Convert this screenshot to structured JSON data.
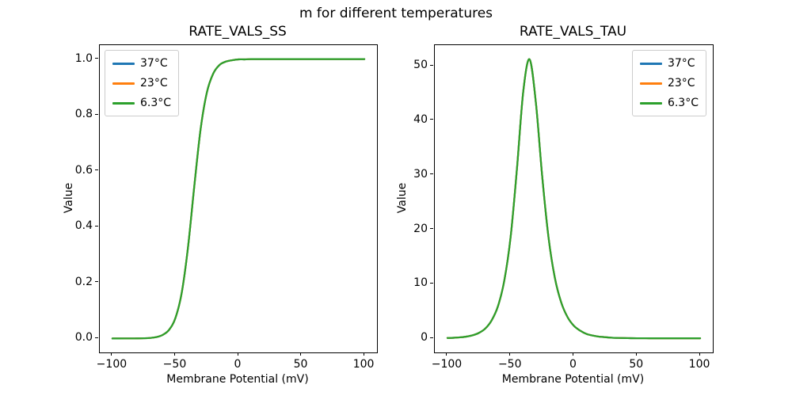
{
  "figure": {
    "title": "m for different temperatures",
    "background": "#ffffff",
    "text_color": "#000000",
    "axes_edge_color": "#000000"
  },
  "legend": {
    "entries": [
      {
        "label": "37°C",
        "color": "#1f77b4"
      },
      {
        "label": "23°C",
        "color": "#ff7f0e"
      },
      {
        "label": "6.3°C",
        "color": "#2ca02c"
      }
    ]
  },
  "chart_data": [
    {
      "type": "line",
      "title": "RATE_VALS_SS",
      "xlabel": "Membrane Potential (mV)",
      "ylabel": "Value",
      "xlim": [
        -110,
        110
      ],
      "ylim": [
        -0.05,
        1.05
      ],
      "xticks": [
        -100,
        -50,
        0,
        50,
        100
      ],
      "xtick_labels": [
        "−100",
        "−50",
        "0",
        "50",
        "100"
      ],
      "yticks": [
        0.0,
        0.2,
        0.4,
        0.6,
        0.8,
        1.0
      ],
      "ytick_labels": [
        "0.0",
        "0.2",
        "0.4",
        "0.6",
        "0.8",
        "1.0"
      ],
      "grid": false,
      "legend_position": "upper-left",
      "note": "all three temperature curves overlap exactly; sigmoid with half-activation near -36 mV",
      "x": [
        -100,
        -95,
        -90,
        -85,
        -80,
        -75,
        -70,
        -65,
        -60,
        -55,
        -50,
        -45,
        -40,
        -35,
        -30,
        -25,
        -20,
        -15,
        -10,
        -5,
        0,
        5,
        10,
        15,
        20,
        25,
        30,
        35,
        40,
        45,
        50,
        55,
        60,
        65,
        70,
        75,
        80,
        85,
        90,
        95,
        100
      ],
      "series": [
        {
          "name": "37°C",
          "color": "#1f77b4",
          "values": [
            0.0,
            0.0,
            0.0001,
            0.0001,
            0.0003,
            0.0008,
            0.002,
            0.005,
            0.013,
            0.031,
            0.073,
            0.163,
            0.326,
            0.545,
            0.749,
            0.881,
            0.948,
            0.979,
            0.991,
            0.996,
            0.999,
            0.999,
            1.0,
            1.0,
            1.0,
            1.0,
            1.0,
            1.0,
            1.0,
            1.0,
            1.0,
            1.0,
            1.0,
            1.0,
            1.0,
            1.0,
            1.0,
            1.0,
            1.0,
            1.0,
            1.0
          ]
        },
        {
          "name": "23°C",
          "color": "#ff7f0e",
          "values": [
            0.0,
            0.0,
            0.0001,
            0.0001,
            0.0003,
            0.0008,
            0.002,
            0.005,
            0.013,
            0.031,
            0.073,
            0.163,
            0.326,
            0.545,
            0.749,
            0.881,
            0.948,
            0.979,
            0.991,
            0.996,
            0.999,
            0.999,
            1.0,
            1.0,
            1.0,
            1.0,
            1.0,
            1.0,
            1.0,
            1.0,
            1.0,
            1.0,
            1.0,
            1.0,
            1.0,
            1.0,
            1.0,
            1.0,
            1.0,
            1.0,
            1.0
          ]
        },
        {
          "name": "6.3°C",
          "color": "#2ca02c",
          "values": [
            0.0,
            0.0,
            0.0001,
            0.0001,
            0.0003,
            0.0008,
            0.002,
            0.005,
            0.013,
            0.031,
            0.073,
            0.163,
            0.326,
            0.545,
            0.749,
            0.881,
            0.948,
            0.979,
            0.991,
            0.996,
            0.999,
            0.999,
            1.0,
            1.0,
            1.0,
            1.0,
            1.0,
            1.0,
            1.0,
            1.0,
            1.0,
            1.0,
            1.0,
            1.0,
            1.0,
            1.0,
            1.0,
            1.0,
            1.0,
            1.0,
            1.0
          ]
        }
      ]
    },
    {
      "type": "line",
      "title": "RATE_VALS_TAU",
      "xlabel": "Membrane Potential (mV)",
      "ylabel": "Value",
      "xlim": [
        -110,
        110
      ],
      "ylim": [
        -2.6,
        53.8
      ],
      "xticks": [
        -100,
        -50,
        0,
        50,
        100
      ],
      "xtick_labels": [
        "−100",
        "−50",
        "0",
        "50",
        "100"
      ],
      "yticks": [
        0,
        10,
        20,
        30,
        40,
        50
      ],
      "ytick_labels": [
        "0",
        "10",
        "20",
        "30",
        "40",
        "50"
      ],
      "grid": false,
      "legend_position": "upper-right",
      "note": "all three temperature curves overlap exactly; bell curve peaking near 51 at about -36 mV",
      "x": [
        -100,
        -95,
        -90,
        -85,
        -80,
        -75,
        -70,
        -65,
        -60,
        -55,
        -50,
        -45,
        -40,
        -35,
        -30,
        -25,
        -20,
        -15,
        -10,
        -5,
        0,
        5,
        10,
        15,
        20,
        25,
        30,
        35,
        40,
        45,
        50,
        55,
        60,
        65,
        70,
        75,
        80,
        85,
        90,
        95,
        100
      ],
      "series": [
        {
          "name": "37°C",
          "color": "#1f77b4",
          "values": [
            0.05,
            0.09,
            0.17,
            0.31,
            0.55,
            1.0,
            1.8,
            3.3,
            5.9,
            10.6,
            18.6,
            31.1,
            45.3,
            51.2,
            43.2,
            29.7,
            18.5,
            11.1,
            6.6,
            3.9,
            2.3,
            1.4,
            0.8,
            0.5,
            0.3,
            0.2,
            0.1,
            0.06,
            0.03,
            0.02,
            0.01,
            0.01,
            0.0,
            0.0,
            0.0,
            0.0,
            0.0,
            0.0,
            0.0,
            0.0,
            0.0
          ]
        },
        {
          "name": "23°C",
          "color": "#ff7f0e",
          "values": [
            0.05,
            0.09,
            0.17,
            0.31,
            0.55,
            1.0,
            1.8,
            3.3,
            5.9,
            10.6,
            18.6,
            31.1,
            45.3,
            51.2,
            43.2,
            29.7,
            18.5,
            11.1,
            6.6,
            3.9,
            2.3,
            1.4,
            0.8,
            0.5,
            0.3,
            0.2,
            0.1,
            0.06,
            0.03,
            0.02,
            0.01,
            0.01,
            0.0,
            0.0,
            0.0,
            0.0,
            0.0,
            0.0,
            0.0,
            0.0,
            0.0
          ]
        },
        {
          "name": "6.3°C",
          "color": "#2ca02c",
          "values": [
            0.05,
            0.09,
            0.17,
            0.31,
            0.55,
            1.0,
            1.8,
            3.3,
            5.9,
            10.6,
            18.6,
            31.1,
            45.3,
            51.2,
            43.2,
            29.7,
            18.5,
            11.1,
            6.6,
            3.9,
            2.3,
            1.4,
            0.8,
            0.5,
            0.3,
            0.2,
            0.1,
            0.06,
            0.03,
            0.02,
            0.01,
            0.01,
            0.0,
            0.0,
            0.0,
            0.0,
            0.0,
            0.0,
            0.0,
            0.0,
            0.0
          ]
        }
      ]
    }
  ]
}
